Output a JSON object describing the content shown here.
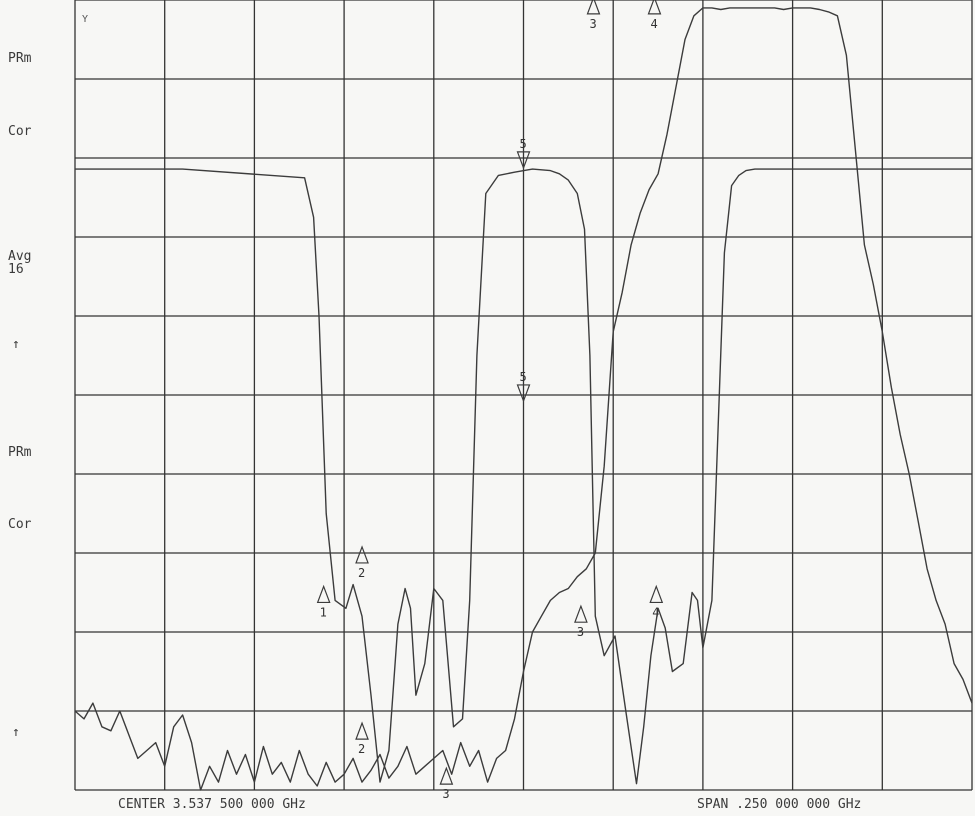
{
  "corner_mark": "Y",
  "side_labels": {
    "upper_prm": "PRm",
    "upper_cor": "Cor",
    "avg_line1": "Avg",
    "avg_line2": "16",
    "upper_arrow": "↑",
    "lower_prm": "PRm",
    "lower_cor": "Cor",
    "lower_arrow": "↑"
  },
  "footer": {
    "center": "CENTER 3.537 500 000 GHz",
    "span": "SPAN .250 000 000 GHz"
  },
  "chart_data": {
    "type": "line",
    "title": "",
    "xlabel": "",
    "ylabel": "",
    "grid": true,
    "grid_divisions": {
      "x": 10,
      "y": 10
    },
    "x_unit": "GHz",
    "xlim": [
      3.4125,
      3.6625
    ],
    "ylim": [
      0,
      10
    ],
    "y_unit": "divisions",
    "series": [
      {
        "x": [
          3.4125,
          3.4425,
          3.4765,
          3.479,
          3.4805,
          3.4825,
          3.485,
          3.488,
          3.49,
          3.4925,
          3.495,
          3.4975,
          3.5,
          3.5025,
          3.5045,
          3.506,
          3.5075,
          3.51,
          3.5125,
          3.515,
          3.518,
          3.5205,
          3.5225,
          3.5245,
          3.527,
          3.5305,
          3.535,
          3.54,
          3.545,
          3.5475,
          3.55,
          3.5525,
          3.5545,
          3.556,
          3.5575,
          3.56,
          3.563,
          3.566,
          3.569,
          3.571,
          3.573,
          3.575,
          3.577,
          3.579,
          3.582,
          3.5845,
          3.586,
          3.5875,
          3.59,
          3.5935,
          3.5955,
          3.5975,
          3.5995,
          3.602,
          3.606,
          3.6125,
          3.6625
        ],
        "y": [
          7.86,
          7.86,
          7.75,
          7.25,
          6.0,
          3.5,
          2.4,
          2.3,
          2.6,
          2.2,
          1.2,
          0.1,
          0.5,
          2.1,
          2.55,
          2.3,
          1.2,
          1.6,
          2.55,
          2.4,
          0.8,
          0.9,
          2.4,
          5.5,
          7.55,
          7.78,
          7.82,
          7.86,
          7.84,
          7.8,
          7.72,
          7.55,
          7.1,
          5.5,
          2.2,
          1.7,
          1.95,
          1.0,
          0.08,
          0.8,
          1.7,
          2.3,
          2.05,
          1.5,
          1.6,
          2.5,
          2.4,
          1.8,
          2.4,
          6.8,
          7.65,
          7.78,
          7.84,
          7.86,
          7.86,
          7.86,
          7.86
        ]
      },
      {
        "x": [
          3.4125,
          3.415,
          3.4175,
          3.42,
          3.4225,
          3.425,
          3.4275,
          3.43,
          3.4325,
          3.435,
          3.4375,
          3.44,
          3.4425,
          3.445,
          3.4475,
          3.45,
          3.4525,
          3.455,
          3.4575,
          3.46,
          3.4625,
          3.465,
          3.4675,
          3.47,
          3.4725,
          3.475,
          3.4775,
          3.48,
          3.4825,
          3.485,
          3.4875,
          3.49,
          3.4925,
          3.495,
          3.4975,
          3.5,
          3.5025,
          3.505,
          3.5075,
          3.51,
          3.5125,
          3.515,
          3.5175,
          3.52,
          3.5225,
          3.525,
          3.5275,
          3.53,
          3.5325,
          3.535,
          3.5375,
          3.54,
          3.5425,
          3.545,
          3.5475,
          3.55,
          3.5525,
          3.555,
          3.5575,
          3.56,
          3.5625,
          3.565,
          3.5675,
          3.57,
          3.5725,
          3.575,
          3.5775,
          3.58,
          3.5825,
          3.585,
          3.5875,
          3.59,
          3.5925,
          3.595,
          3.5975,
          3.6,
          3.6025,
          3.605,
          3.6075,
          3.61,
          3.6125,
          3.615,
          3.6175,
          3.62,
          3.6225,
          3.625,
          3.6275,
          3.63,
          3.6325,
          3.635,
          3.6375,
          3.64,
          3.6425,
          3.645,
          3.6475,
          3.65,
          3.6525,
          3.655,
          3.6575,
          3.66,
          3.6625
        ],
        "y": [
          1.0,
          0.9,
          1.1,
          0.8,
          0.75,
          1.0,
          0.7,
          0.4,
          0.5,
          0.6,
          0.3,
          0.8,
          0.95,
          0.6,
          0.0,
          0.3,
          0.1,
          0.5,
          0.2,
          0.45,
          0.1,
          0.55,
          0.2,
          0.35,
          0.1,
          0.5,
          0.2,
          0.05,
          0.35,
          0.1,
          0.2,
          0.4,
          0.1,
          0.25,
          0.45,
          0.15,
          0.3,
          0.55,
          0.2,
          0.3,
          0.4,
          0.5,
          0.2,
          0.6,
          0.3,
          0.5,
          0.1,
          0.4,
          0.5,
          0.9,
          1.5,
          2.0,
          2.2,
          2.4,
          2.5,
          2.55,
          2.7,
          2.8,
          3.0,
          4.1,
          5.8,
          6.3,
          6.9,
          7.3,
          7.6,
          7.8,
          8.3,
          8.9,
          9.5,
          9.8,
          9.9,
          9.9,
          9.88,
          9.9,
          9.9,
          9.9,
          9.9,
          9.9,
          9.9,
          9.88,
          9.9,
          9.9,
          9.9,
          9.88,
          9.85,
          9.8,
          9.3,
          8.1,
          6.9,
          6.4,
          5.8,
          5.1,
          4.5,
          4.0,
          3.4,
          2.8,
          2.4,
          2.1,
          1.6,
          1.4,
          1.1
        ]
      }
    ],
    "markers": [
      {
        "label": "1",
        "x": 3.4818,
        "y": 2.45,
        "dir": "up"
      },
      {
        "label": "2",
        "x": 3.4925,
        "y": 2.95,
        "dir": "up"
      },
      {
        "label": "2",
        "x": 3.4925,
        "y": 0.72,
        "dir": "up"
      },
      {
        "label": "3",
        "x": 3.516,
        "y": 0.15,
        "dir": "up"
      },
      {
        "label": "5",
        "x": 3.5375,
        "y": 7.9,
        "dir": "down"
      },
      {
        "label": "5",
        "x": 3.5375,
        "y": 4.95,
        "dir": "down"
      },
      {
        "label": "3",
        "x": 3.5535,
        "y": 2.2,
        "dir": "up"
      },
      {
        "label": "3",
        "x": 3.557,
        "y": 9.9,
        "dir": "up"
      },
      {
        "label": "4",
        "x": 3.574,
        "y": 9.9,
        "dir": "up"
      },
      {
        "label": "4",
        "x": 3.5745,
        "y": 2.45,
        "dir": "up"
      }
    ],
    "trace_color": "#3c3c3c",
    "grid_color": "#333333"
  }
}
